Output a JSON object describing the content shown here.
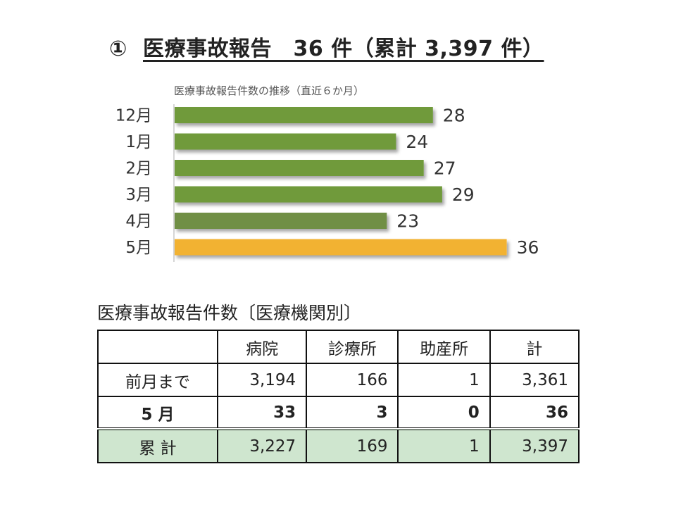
{
  "header": {
    "number": "①",
    "title": "医療事故報告　36 件（累計 3,397 件）"
  },
  "chart_data": {
    "type": "bar",
    "orientation": "horizontal",
    "title": "医療事故報告件数の推移（直近６か月）",
    "categories": [
      "12月",
      "1月",
      "2月",
      "3月",
      "4月",
      "5月"
    ],
    "values": [
      28,
      24,
      27,
      29,
      23,
      36
    ],
    "data_labels": [
      "28",
      "24",
      "27",
      "29",
      "23",
      "36"
    ],
    "colors": [
      "#6f9a3a",
      "#6f9a3a",
      "#6f9a3a",
      "#6f9a3a",
      "#6f8f44",
      "#f2b233"
    ],
    "xlim": [
      0,
      40
    ],
    "grid": false,
    "legend": "none"
  },
  "table": {
    "title": "医療事故報告件数〔医療機関別〕",
    "headers": [
      "",
      "病院",
      "診療所",
      "助産所",
      "計"
    ],
    "rows": [
      [
        "前月まで",
        "3,194",
        "166",
        "1",
        "3,361"
      ],
      [
        "5 月",
        "33",
        "3",
        "0",
        "36"
      ],
      [
        "累 計",
        "3,227",
        "169",
        "1",
        "3,397"
      ]
    ],
    "total_row_color": "#cfe6cf"
  }
}
